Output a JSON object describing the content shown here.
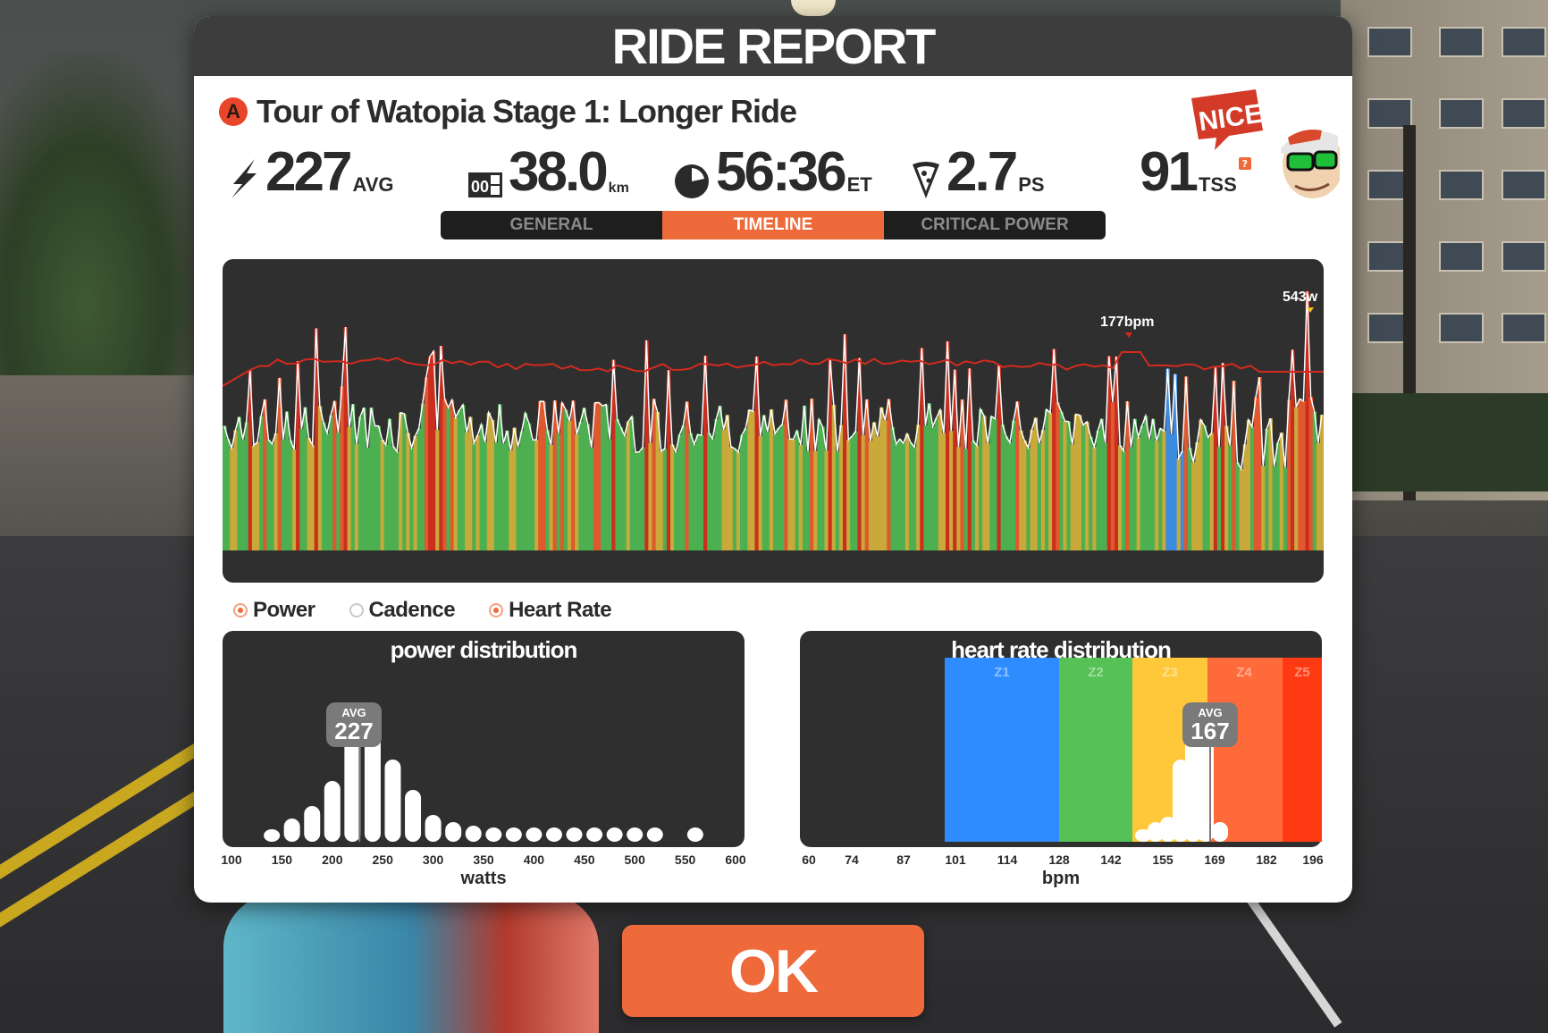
{
  "modal": {
    "title": "RIDE REPORT"
  },
  "route": {
    "badge": "A",
    "name": "Tour of Watopia Stage 1: Longer Ride"
  },
  "stats": {
    "power": {
      "value": "227",
      "unit": "AVG",
      "icon": "lightning-bolt-icon"
    },
    "distance": {
      "value": "38.0",
      "unit": "km",
      "icon": "odometer-icon"
    },
    "time": {
      "value": "56:36",
      "unit": "ET",
      "icon": "clock-icon"
    },
    "pizza": {
      "value": "2.7",
      "unit": "PS",
      "icon": "pizza-slice-icon"
    },
    "tss": {
      "value": "91",
      "unit": "TSS",
      "help": "?"
    }
  },
  "mascot": {
    "speech": "NICE!"
  },
  "tabs": [
    {
      "label": "GENERAL",
      "active": false
    },
    {
      "label": "TIMELINE",
      "active": true
    },
    {
      "label": "CRITICAL POWER",
      "active": false
    }
  ],
  "timeline": {
    "peak_hr_label": "177bpm",
    "peak_power_label": "543w",
    "colors": {
      "hr_line": "#d42a1e",
      "power_line": "#ffffff",
      "z1": "#3b8be0",
      "z2": "#4caf50",
      "z3": "#c8a93a",
      "z4": "#e0582e",
      "z5": "#cc2e1e"
    }
  },
  "toggles": [
    {
      "label": "Power",
      "on": true
    },
    {
      "label": "Cadence",
      "on": false
    },
    {
      "label": "Heart Rate",
      "on": true
    }
  ],
  "power_distribution": {
    "title": "power distribution",
    "avg_label": "AVG",
    "avg_value": "227",
    "x_ticks": [
      "100",
      "150",
      "200",
      "250",
      "300",
      "350",
      "400",
      "450",
      "500",
      "550",
      "600"
    ],
    "x_label": "watts"
  },
  "hr_distribution": {
    "title": "heart rate distribution",
    "avg_label": "AVG",
    "avg_value": "167",
    "zones": [
      "Z1",
      "Z2",
      "Z3",
      "Z4",
      "Z5"
    ],
    "zone_colors": [
      "#2f8cff",
      "#56c156",
      "#ffc83a",
      "#ff6a3a",
      "#ff3a12"
    ],
    "x_ticks": [
      "60",
      "74",
      "87",
      "101",
      "114",
      "128",
      "142",
      "155",
      "169",
      "182",
      "196"
    ],
    "x_label": "bpm"
  },
  "ok_button": {
    "label": "OK"
  }
}
